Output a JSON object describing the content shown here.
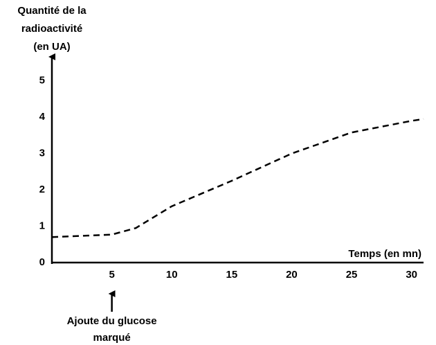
{
  "chart_data": {
    "type": "line",
    "ylabel": [
      "Quantité de la",
      "radioactivité",
      "(en UA)"
    ],
    "xlabel": "Temps (en mn)",
    "annotation": [
      "Ajoute du glucose",
      "marqué"
    ],
    "annotation_x": 5,
    "x": [
      0,
      5,
      7,
      10,
      15,
      20,
      25,
      30,
      31
    ],
    "series": [
      {
        "color": "#000000",
        "values": [
          0.7,
          0.77,
          0.95,
          1.55,
          2.25,
          3.0,
          3.58,
          3.9,
          3.95
        ]
      }
    ],
    "xlim": [
      0,
      31
    ],
    "xticks": [
      5,
      10,
      15,
      20,
      25,
      30
    ],
    "ylim": [
      0,
      5.7
    ],
    "yticks": [
      0,
      1,
      2,
      3,
      4,
      5
    ],
    "grid": false
  }
}
